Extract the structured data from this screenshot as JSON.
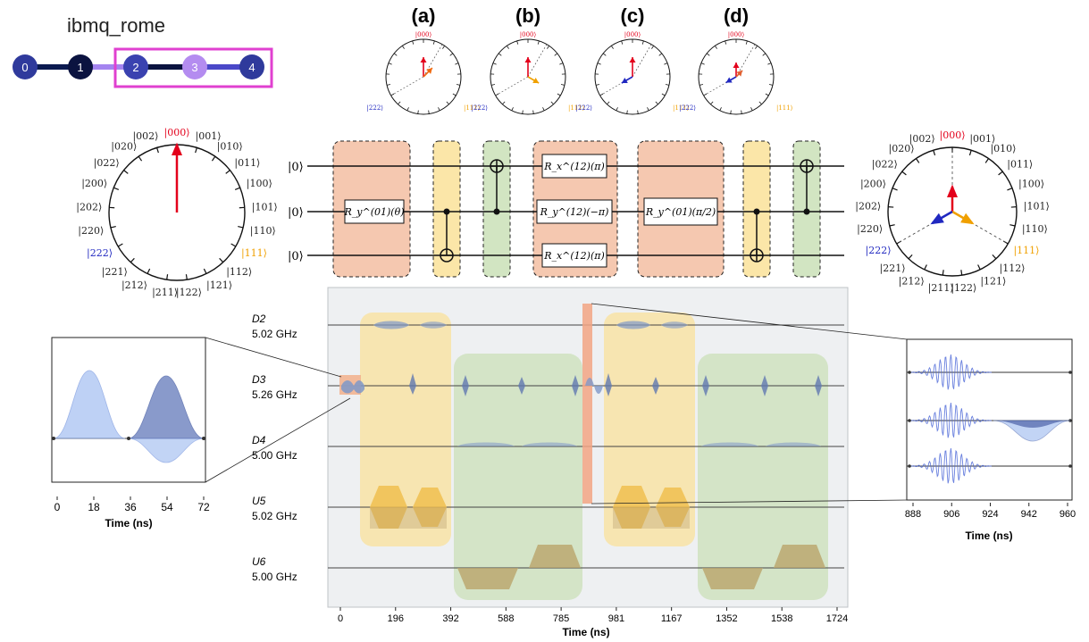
{
  "device": {
    "name": "ibmq_rome",
    "qubits": [
      "0",
      "1",
      "2",
      "3",
      "4"
    ],
    "colors": {
      "qubit_dark": "#2f3a9c",
      "qubit_navy": "#0b1340",
      "qubit_light": "#b48cf0",
      "highlight_box": "#e040d0"
    }
  },
  "panel_labels": [
    "(a)",
    "(b)",
    "(c)",
    "(d)"
  ],
  "ket_labels": {
    "ring": [
      "|000⟩",
      "|001⟩",
      "|010⟩",
      "|011⟩",
      "|100⟩",
      "|101⟩",
      "|110⟩",
      "|111⟩",
      "|112⟩",
      "|121⟩",
      "|122⟩",
      "|211⟩",
      "|212⟩",
      "|221⟩",
      "|222⟩",
      "|220⟩",
      "|202⟩",
      "|200⟩",
      "|022⟩",
      "|020⟩",
      "|002⟩"
    ],
    "small": [
      "|000⟩",
      "|222⟩",
      "|111⟩"
    ],
    "colors": {
      "000": "#e3001b",
      "222": "#2028c0",
      "111": "#f0a000",
      "default": "#222222"
    }
  },
  "circuit": {
    "inputs": [
      "|0⟩",
      "|0⟩",
      "|0⟩"
    ],
    "gates": {
      "ry_theta": "R_y^(01)(θ)",
      "rx12_top": "R_x^(12)(π)",
      "ry12": "R_y^(12)(−π)",
      "rx12_bottom": "R_x^(12)(π)",
      "ry_pi2": "R_y^(01)(π/2)"
    },
    "box_colors": {
      "orange": "#f5c8b0",
      "yellow": "#fbe6a8",
      "green": "#d2e5c2"
    }
  },
  "channels": [
    {
      "name": "D2",
      "freq": "5.02 GHz"
    },
    {
      "name": "D3",
      "freq": "5.26 GHz"
    },
    {
      "name": "D4",
      "freq": "5.00 GHz"
    },
    {
      "name": "U5",
      "freq": "5.02 GHz"
    },
    {
      "name": "U6",
      "freq": "5.00 GHz"
    }
  ],
  "schedule_axis": {
    "ticks": [
      "0",
      "196",
      "392",
      "588",
      "785",
      "981",
      "1167",
      "1352",
      "1538",
      "1724"
    ],
    "xlabel": "Time (ns)"
  },
  "left_inset": {
    "ticks": [
      "0",
      "18",
      "36",
      "54",
      "72"
    ],
    "xlabel": "Time (ns)"
  },
  "right_inset": {
    "ticks": [
      "888",
      "906",
      "924",
      "942",
      "960"
    ],
    "xlabel": "Time (ns)"
  }
}
